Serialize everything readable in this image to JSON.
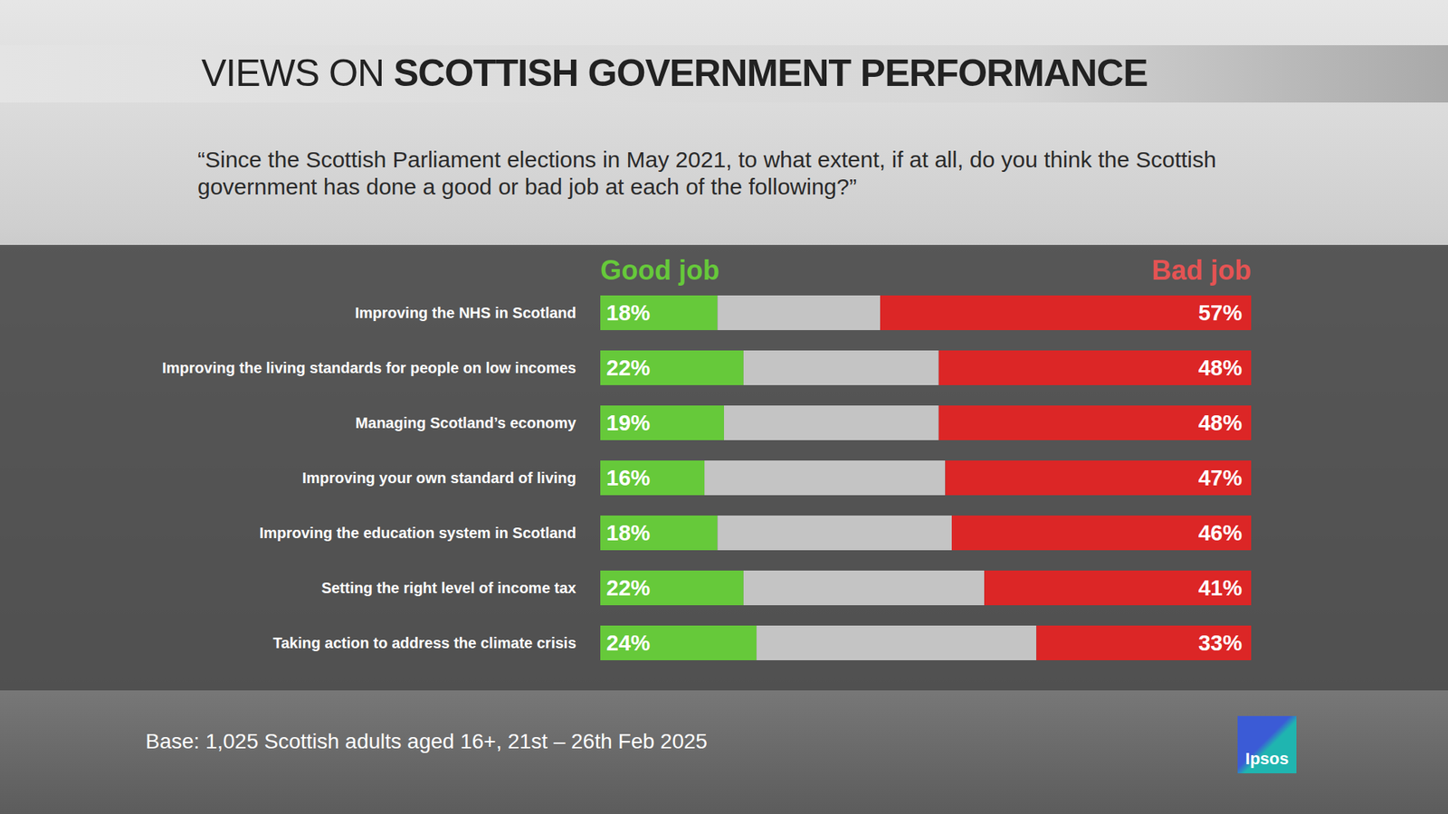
{
  "chart_data": {
    "type": "bar",
    "orientation": "horizontal",
    "stacked": true,
    "data_labels": true,
    "tick_labels": "y",
    "grid": false,
    "title": "VIEWS ON SCOTTISH GOVERNMENT PERFORMANCE",
    "subtitle": "“Since the Scottish Parliament elections in May 2021, to what extent, if at all, do you think the Scottish government has done a good or bad job at each of the following?”",
    "annotations": [
      "Base: 1,025 Scottish adults aged 16+, 21st – 26th Feb 2025",
      "Ipsos"
    ],
    "categories": [
      "Improving the NHS in Scotland",
      "Improving the living standards for people on low incomes",
      "Managing Scotland’s economy",
      "Improving your own standard of living",
      "Improving the education system in Scotland",
      "Setting the right level of income tax",
      "Taking action to address the climate crisis"
    ],
    "xlim": [
      0,
      100
    ],
    "series": [
      {
        "name": "Good job",
        "color": "#66c93a",
        "values": [
          18,
          22,
          19,
          16,
          18,
          22,
          24
        ],
        "value_labels": [
          "18%",
          "22%",
          "19%",
          "16%",
          "18%",
          "22%",
          "24%"
        ]
      },
      {
        "color": "#c4c4c4",
        "values": [
          25,
          30,
          33,
          37,
          36,
          37,
          43
        ]
      },
      {
        "name": "Bad job",
        "color": "#dc2626",
        "values": [
          57,
          48,
          48,
          47,
          46,
          41,
          33
        ],
        "value_labels": [
          "57%",
          "48%",
          "48%",
          "47%",
          "46%",
          "41%",
          "33%"
        ]
      }
    ]
  }
}
